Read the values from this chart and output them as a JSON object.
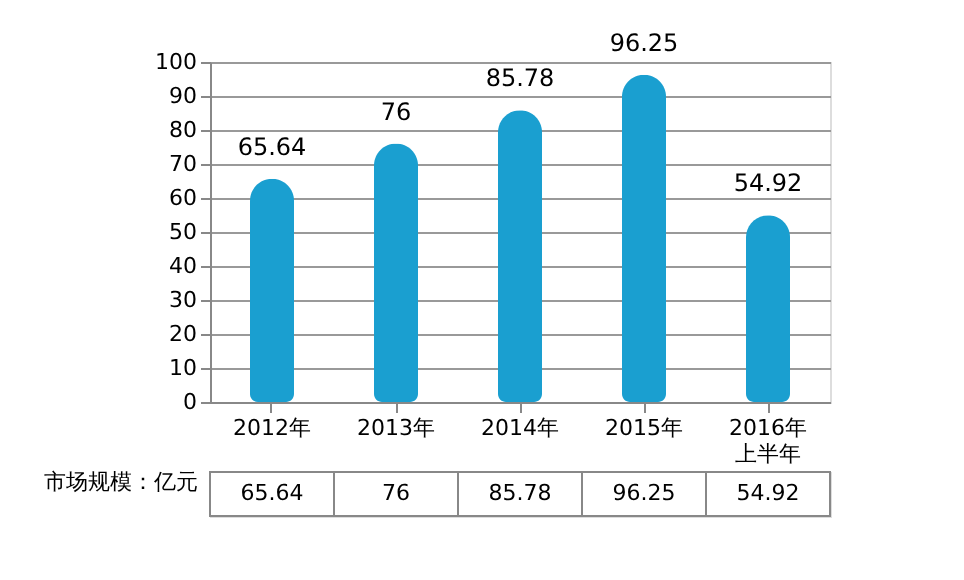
{
  "chart_data": {
    "type": "bar",
    "categories": [
      "2012年",
      "2013年",
      "2014年",
      "2015年",
      "2016年上半年"
    ],
    "series": [
      {
        "name": "市场规模：亿元",
        "color": "#1a9fd0",
        "values": [
          65.64,
          76,
          85.78,
          96.25,
          54.92
        ],
        "value_labels": [
          "65.64",
          "76",
          "85.78",
          "96.25",
          "54.92"
        ]
      }
    ],
    "ylim": [
      0,
      100
    ],
    "yticks": [
      0,
      10,
      20,
      30,
      40,
      50,
      60,
      70,
      80,
      90,
      100
    ],
    "grid": "y",
    "data_labels": true,
    "legend": "bottom left"
  }
}
